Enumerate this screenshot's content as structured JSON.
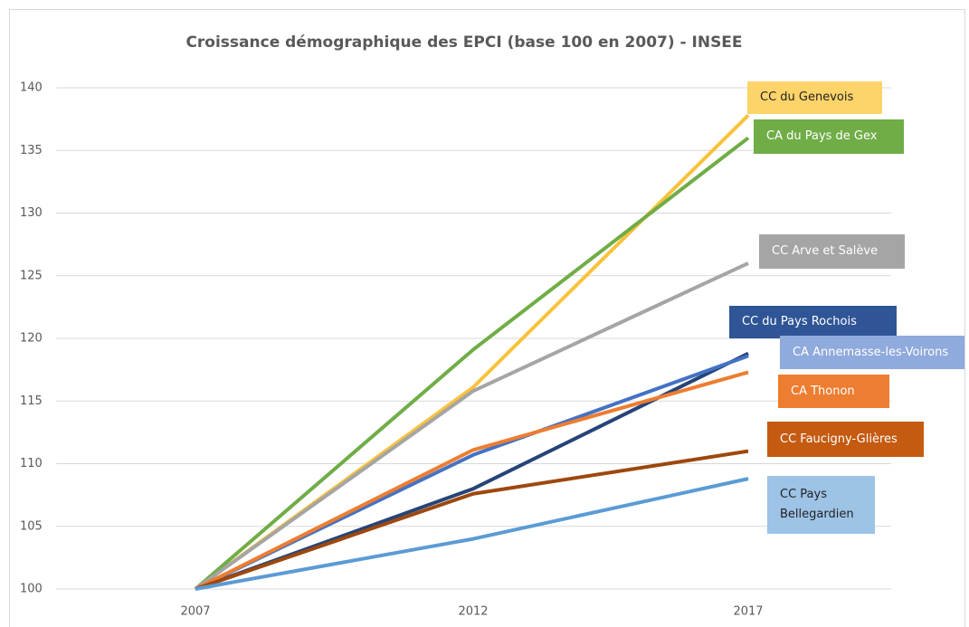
{
  "chart_data": {
    "type": "line",
    "title": "Croissance démographique des EPCI (base 100 en 2007) - INSEE",
    "categories": [
      "2007",
      "2012",
      "2017"
    ],
    "ylim": [
      100,
      140
    ],
    "yticks": [
      100,
      105,
      110,
      115,
      120,
      125,
      130,
      135,
      140
    ],
    "grid": true,
    "series": [
      {
        "name": "CC du Genevois",
        "color": "#f9c23c",
        "label_color": "#fdd46a",
        "values": [
          100,
          116.1,
          137.8
        ]
      },
      {
        "name": "CA du Pays de Gex",
        "color": "#70ad47",
        "label_color": "#70ad47",
        "values": [
          100,
          119.1,
          136
        ]
      },
      {
        "name": "CC Arve et Salève",
        "color": "#a5a5a5",
        "label_color": "#a5a5a5",
        "values": [
          100,
          115.8,
          126
        ]
      },
      {
        "name": "CC du Pays Rochois",
        "color": "#264478",
        "label_color": "#2f5597",
        "values": [
          100,
          108,
          118.8
        ]
      },
      {
        "name": "CA Annemasse-les-Voirons",
        "color": "#4472c4",
        "label_color": "#8faadc",
        "values": [
          100,
          110.7,
          118.6
        ]
      },
      {
        "name": "CA Thonon",
        "color": "#ed7d31",
        "label_color": "#ed7d31",
        "values": [
          100,
          111.1,
          117.3
        ]
      },
      {
        "name": "CC Faucigny-Glières",
        "color": "#9e480e",
        "label_color": "#c55a11",
        "values": [
          100,
          107.6,
          111
        ]
      },
      {
        "name": "CC Pays Bellegardien",
        "color": "#5b9bd5",
        "label_color": "#9dc3e6",
        "values": [
          100,
          104,
          108.8
        ]
      }
    ]
  }
}
